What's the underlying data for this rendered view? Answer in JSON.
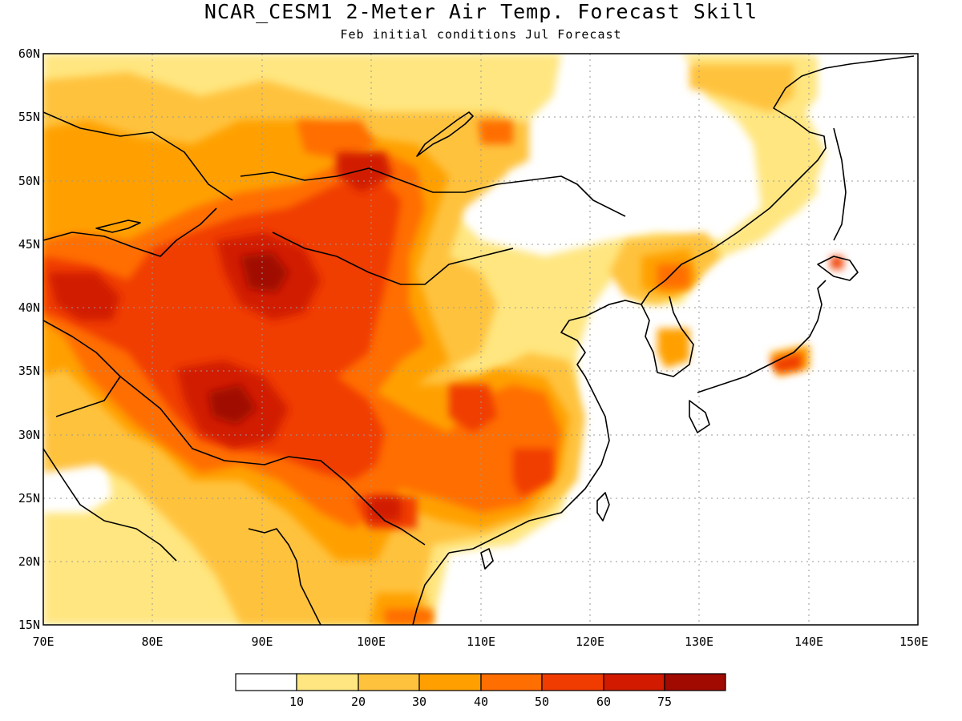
{
  "title": "NCAR_CESM1 2-Meter Air Temp. Forecast Skill",
  "subtitle": "Feb initial conditions  Jul Forecast",
  "map": {
    "lon_range": [
      70,
      150
    ],
    "lat_range": [
      15,
      60
    ],
    "lon_ticks": [
      "70E",
      "80E",
      "90E",
      "100E",
      "110E",
      "120E",
      "130E",
      "140E",
      "150E"
    ],
    "lat_ticks": [
      "60N",
      "55N",
      "50N",
      "45N",
      "40N",
      "35N",
      "30N",
      "25N",
      "20N",
      "15N"
    ],
    "grid": "dotted"
  },
  "colorbar": {
    "labels": [
      "10",
      "20",
      "30",
      "40",
      "50",
      "60",
      "75"
    ],
    "colors": [
      "#ffffff",
      "#ffe680",
      "#ffc23d",
      "#ffa000",
      "#ff6e00",
      "#f03c00",
      "#d11a00",
      "#a00a00"
    ]
  },
  "colors": {
    "skill_10_20": "#ffe680",
    "skill_20_30": "#ffc23d",
    "skill_30_40": "#ffa000",
    "skill_40_50": "#ff6e00",
    "skill_50_60": "#f03c00",
    "skill_60_75": "#d11a00",
    "skill_75_plus": "#a00a00",
    "coastline": "#000000"
  }
}
